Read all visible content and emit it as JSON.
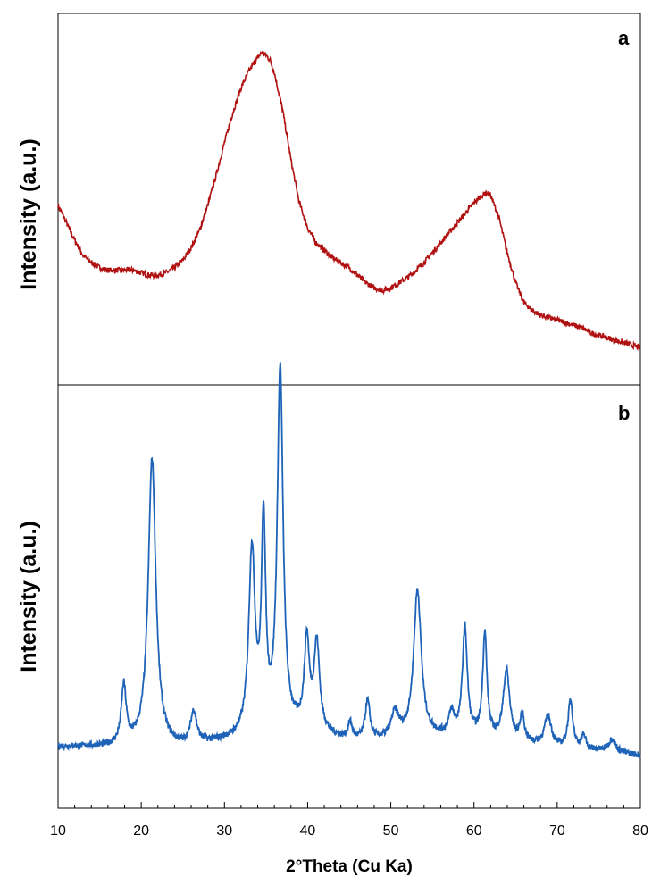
{
  "chart_data": [
    {
      "type": "line",
      "panel_label": "a",
      "ylabel": "Intensity (a.u.)",
      "xlim": [
        10,
        80
      ],
      "color": "#b01010",
      "series": [
        {
          "x": [
            10,
            11,
            12,
            13,
            14,
            15,
            16,
            17,
            18,
            19,
            20,
            21,
            22,
            23,
            24,
            25,
            26,
            27,
            28,
            29,
            30,
            31,
            32,
            33,
            34,
            34.5,
            35,
            35.5,
            36,
            37,
            38,
            39,
            40,
            41,
            42,
            43,
            44,
            45,
            46,
            47,
            48,
            49,
            50,
            51,
            52,
            53,
            54,
            55,
            56,
            57,
            58,
            59,
            60,
            61,
            61.5,
            62,
            63,
            64,
            65,
            66,
            67,
            68,
            69,
            70,
            71,
            72,
            73,
            74,
            75,
            76,
            77,
            78,
            79,
            80
          ],
          "y": [
            0.59,
            0.52,
            0.45,
            0.39,
            0.36,
            0.34,
            0.33,
            0.33,
            0.33,
            0.33,
            0.32,
            0.31,
            0.31,
            0.32,
            0.34,
            0.37,
            0.42,
            0.49,
            0.59,
            0.71,
            0.84,
            0.96,
            1.06,
            1.13,
            1.18,
            1.2,
            1.19,
            1.17,
            1.12,
            0.97,
            0.77,
            0.6,
            0.5,
            0.44,
            0.41,
            0.38,
            0.36,
            0.34,
            0.31,
            0.28,
            0.26,
            0.25,
            0.26,
            0.28,
            0.3,
            0.33,
            0.36,
            0.4,
            0.44,
            0.48,
            0.52,
            0.56,
            0.6,
            0.63,
            0.64,
            0.63,
            0.54,
            0.4,
            0.28,
            0.2,
            0.17,
            0.15,
            0.14,
            0.13,
            0.12,
            0.11,
            0.1,
            0.08,
            0.07,
            0.06,
            0.05,
            0.04,
            0.03,
            0.02
          ]
        }
      ]
    },
    {
      "type": "line",
      "panel_label": "b",
      "ylabel": "Intensity (a.u.)",
      "xlim": [
        10,
        80
      ],
      "xlabel": "2°Theta (Cu Ka)",
      "xticks": [
        10,
        20,
        30,
        40,
        50,
        60,
        70,
        80
      ],
      "color": "#1f63b8",
      "baseline": [
        [
          10,
          0.18
        ],
        [
          25,
          0.17
        ],
        [
          30,
          0.2
        ],
        [
          35,
          0.22
        ],
        [
          40,
          0.25
        ],
        [
          45,
          0.2
        ],
        [
          50,
          0.2
        ],
        [
          55,
          0.22
        ],
        [
          60,
          0.22
        ],
        [
          65,
          0.2
        ],
        [
          70,
          0.17
        ],
        [
          75,
          0.16
        ],
        [
          80,
          0.14
        ]
      ],
      "peaks": [
        {
          "center": 17.9,
          "height": 0.27,
          "width": 0.35
        },
        {
          "center": 21.3,
          "height": 1.33,
          "width": 0.55
        },
        {
          "center": 26.3,
          "height": 0.15,
          "width": 0.45
        },
        {
          "center": 33.3,
          "height": 0.85,
          "width": 0.45
        },
        {
          "center": 34.7,
          "height": 0.95,
          "width": 0.3
        },
        {
          "center": 36.7,
          "height": 1.67,
          "width": 0.42
        },
        {
          "center": 39.9,
          "height": 0.4,
          "width": 0.35
        },
        {
          "center": 41.1,
          "height": 0.4,
          "width": 0.4
        },
        {
          "center": 45.1,
          "height": 0.08,
          "width": 0.3
        },
        {
          "center": 47.2,
          "height": 0.18,
          "width": 0.35
        },
        {
          "center": 50.5,
          "height": 0.12,
          "width": 0.6
        },
        {
          "center": 53.2,
          "height": 0.68,
          "width": 0.55
        },
        {
          "center": 57.3,
          "height": 0.1,
          "width": 0.4
        },
        {
          "center": 58.9,
          "height": 0.5,
          "width": 0.35
        },
        {
          "center": 61.3,
          "height": 0.48,
          "width": 0.3
        },
        {
          "center": 63.9,
          "height": 0.32,
          "width": 0.45
        },
        {
          "center": 65.8,
          "height": 0.12,
          "width": 0.3
        },
        {
          "center": 68.9,
          "height": 0.14,
          "width": 0.5
        },
        {
          "center": 71.6,
          "height": 0.22,
          "width": 0.35
        },
        {
          "center": 73.2,
          "height": 0.06,
          "width": 0.3
        },
        {
          "center": 76.6,
          "height": 0.06,
          "width": 0.5
        }
      ]
    }
  ]
}
